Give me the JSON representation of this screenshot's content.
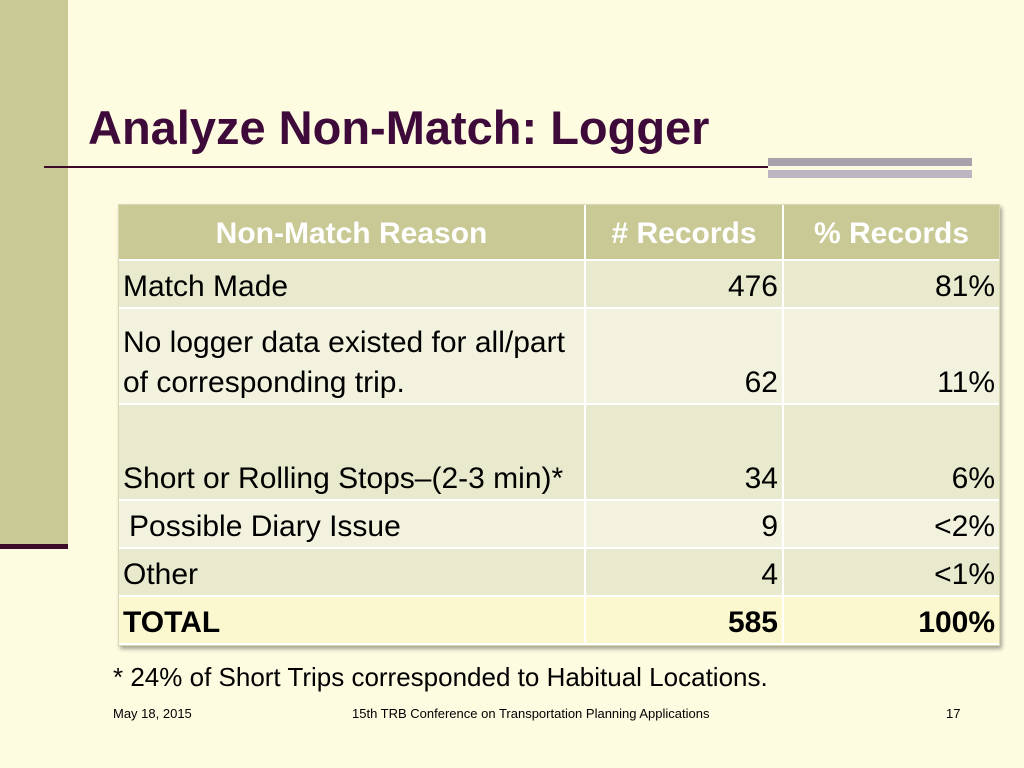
{
  "slide": {
    "title": "Analyze Non-Match: Logger",
    "table": {
      "headers": [
        "Non-Match Reason",
        "# Records",
        "% Records"
      ],
      "rows": [
        {
          "reason": "Match Made",
          "records": "476",
          "percent": "81%"
        },
        {
          "reason": "No logger data existed for all/part of corresponding trip.",
          "records": "62",
          "percent": "11%"
        },
        {
          "reason": "Short or Rolling Stops–(2-3 min)*",
          "records": "34",
          "percent": "6%"
        },
        {
          "reason": "Possible Diary Issue",
          "records": "9",
          "percent": "<2%"
        },
        {
          "reason": "Other",
          "records": "4",
          "percent": "<1%"
        }
      ],
      "total": {
        "reason": "TOTAL",
        "records": "585",
        "percent": "100%"
      }
    },
    "footnote": "* 24% of Short Trips corresponded to Habitual Locations.",
    "footer": {
      "date": "May 18, 2015",
      "conference": "15th TRB Conference on Transportation Planning Applications",
      "page_number": "17"
    },
    "colors": {
      "background": "#fdfbe0",
      "accent_bar": "#c9c995",
      "title": "#3d0a3a",
      "header_text": "#ffffff"
    }
  }
}
